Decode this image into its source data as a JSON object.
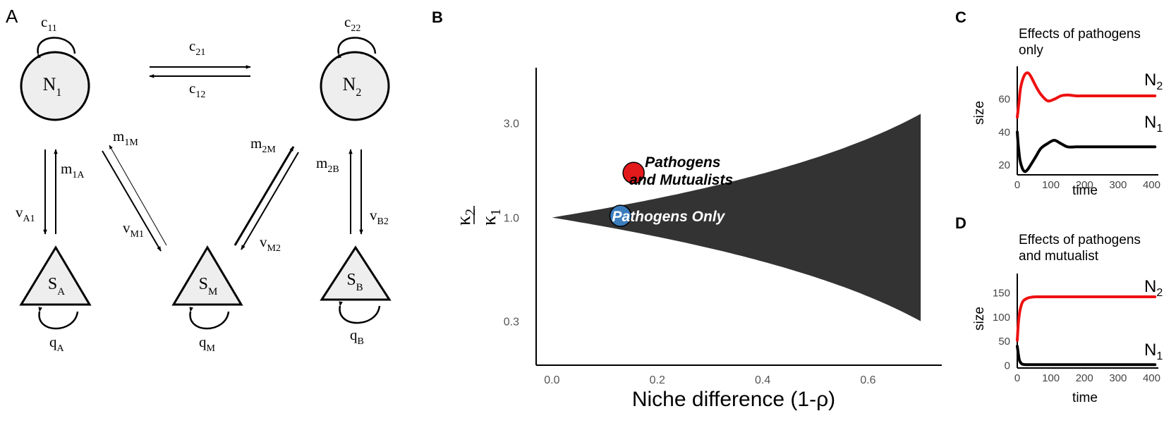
{
  "panels": {
    "a": "A",
    "b": "B",
    "c": "C",
    "d": "D"
  },
  "diagram": {
    "nodes": [
      {
        "id": "N1",
        "base": "N",
        "sub": "1"
      },
      {
        "id": "N2",
        "base": "N",
        "sub": "2"
      },
      {
        "id": "SA",
        "base": "S",
        "sub": "A"
      },
      {
        "id": "SM",
        "base": "S",
        "sub": "M"
      },
      {
        "id": "SB",
        "base": "S",
        "sub": "B"
      }
    ],
    "edges": {
      "c11": {
        "base": "c",
        "sub": "11"
      },
      "c22": {
        "base": "c",
        "sub": "22"
      },
      "c21": {
        "base": "c",
        "sub": "21"
      },
      "c12": {
        "base": "c",
        "sub": "12"
      },
      "m1A": {
        "base": "m",
        "sub": "1A"
      },
      "vA1": {
        "base": "v",
        "sub": "A1"
      },
      "m1M": {
        "base": "m",
        "sub": "1M"
      },
      "vM1": {
        "base": "v",
        "sub": "M1"
      },
      "m2M": {
        "base": "m",
        "sub": "2M"
      },
      "vM2": {
        "base": "v",
        "sub": "M2"
      },
      "m2B": {
        "base": "m",
        "sub": "2B"
      },
      "vB2": {
        "base": "v",
        "sub": "B2"
      },
      "qA": {
        "base": "q",
        "sub": "A"
      },
      "qM": {
        "base": "q",
        "sub": "M"
      },
      "qB": {
        "base": "q",
        "sub": "B"
      }
    }
  },
  "chart_data": [
    {
      "panel": "B",
      "type": "area",
      "xlabel": "Niche difference (1-ρ)",
      "ylabel": {
        "num": "κ",
        "num_sub": "2",
        "den": "κ",
        "den_sub": "1"
      },
      "xlim": [
        -0.03,
        0.74
      ],
      "x_ticks": [
        0.0,
        0.2,
        0.4,
        0.6
      ],
      "x_tick_labels": [
        "0.0",
        "0.2",
        "0.4",
        "0.6"
      ],
      "y_scale": "log",
      "y_ticks": [
        0.3,
        1.0,
        3.0
      ],
      "y_tick_labels": [
        "0.3",
        "1.0",
        "3.0"
      ],
      "ylim": [
        0.18,
        5.7
      ],
      "fill_color": "#333333",
      "region_x": [
        0.0,
        0.1,
        0.2,
        0.3,
        0.4,
        0.5,
        0.6,
        0.7
      ],
      "region_upper": [
        1.0,
        1.11,
        1.25,
        1.43,
        1.67,
        2.0,
        2.5,
        3.33
      ],
      "region_lower": [
        1.0,
        0.9,
        0.8,
        0.7,
        0.6,
        0.5,
        0.4,
        0.3
      ],
      "points": [
        {
          "label_lines": [
            "Pathogens",
            "and Mutualists"
          ],
          "x": 0.155,
          "y": 1.68,
          "color": "#e31a1c",
          "label_color": "#000000"
        },
        {
          "label_lines": [
            "Pathogens Only"
          ],
          "x": 0.13,
          "y": 1.02,
          "color": "#3b7dbd",
          "label_color": "#ffffff"
        }
      ]
    },
    {
      "panel": "C",
      "type": "line",
      "title_lines": [
        "Effects of pathogens",
        "only"
      ],
      "xlabel": "time",
      "ylabel": "size",
      "xlim": [
        0,
        420
      ],
      "ylim": [
        14,
        80
      ],
      "x_ticks": [
        0,
        100,
        200,
        300,
        400
      ],
      "x_tick_labels": [
        "0",
        "100",
        "200",
        "300",
        "400"
      ],
      "y_ticks": [
        20,
        40,
        60
      ],
      "y_tick_labels": [
        "20",
        "40",
        "60"
      ],
      "series": [
        {
          "name": "N2",
          "label_base": "N",
          "label_sub": "2",
          "color": "#ee1111",
          "x": [
            0,
            5,
            10,
            20,
            30,
            40,
            55,
            70,
            90,
            110,
            130,
            150,
            175,
            200,
            250,
            300,
            350,
            410
          ],
          "y": [
            49,
            58,
            67,
            74,
            76,
            74,
            68,
            63,
            59,
            60,
            62,
            62.5,
            62,
            62,
            62,
            62,
            62,
            62
          ]
        },
        {
          "name": "N1",
          "label_base": "N",
          "label_sub": "1",
          "color": "#000000",
          "x": [
            0,
            3,
            8,
            15,
            22,
            30,
            40,
            55,
            70,
            90,
            110,
            130,
            150,
            175,
            200,
            250,
            300,
            350,
            410
          ],
          "y": [
            40,
            32,
            23,
            18,
            16,
            17,
            20,
            25,
            30,
            33,
            35,
            33,
            31,
            31,
            31,
            31,
            31,
            31,
            31
          ]
        }
      ]
    },
    {
      "panel": "D",
      "type": "line",
      "title_lines": [
        "Effects of pathogens",
        "and mutualist"
      ],
      "xlabel": "time",
      "ylabel": "size",
      "xlim": [
        0,
        420
      ],
      "ylim": [
        -5,
        190
      ],
      "x_ticks": [
        0,
        100,
        200,
        300,
        400
      ],
      "x_tick_labels": [
        "0",
        "100",
        "200",
        "300",
        "400"
      ],
      "y_ticks": [
        0,
        50,
        100,
        150
      ],
      "y_tick_labels": [
        "0",
        "50",
        "100",
        "150"
      ],
      "series": [
        {
          "name": "N2",
          "label_base": "N",
          "label_sub": "2",
          "color": "#ee1111",
          "x": [
            0,
            3,
            6,
            10,
            15,
            20,
            30,
            40,
            55,
            70,
            100,
            150,
            250,
            410
          ],
          "y": [
            52,
            85,
            105,
            120,
            130,
            135,
            139,
            141,
            142,
            142,
            142,
            142,
            142,
            142
          ]
        },
        {
          "name": "N1",
          "label_base": "N",
          "label_sub": "1",
          "color": "#000000",
          "x": [
            0,
            3,
            6,
            10,
            15,
            25,
            40,
            100,
            410
          ],
          "y": [
            40,
            25,
            12,
            6,
            3,
            2,
            2,
            2,
            2
          ]
        }
      ]
    }
  ]
}
